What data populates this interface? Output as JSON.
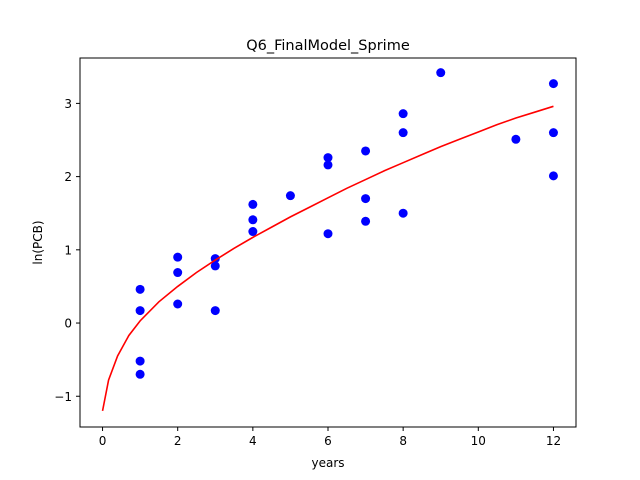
{
  "chart_data": {
    "type": "scatter",
    "title": "Q6_FinalModel_Sprime",
    "xlabel": "years",
    "ylabel": "ln(PCB)",
    "xlim": [
      -0.6,
      12.6
    ],
    "ylim": [
      -1.42,
      3.62
    ],
    "x_ticks": [
      0,
      2,
      4,
      6,
      8,
      10,
      12
    ],
    "x_tick_labels": [
      "0",
      "2",
      "4",
      "6",
      "8",
      "10",
      "12"
    ],
    "y_ticks": [
      -1,
      0,
      1,
      2,
      3
    ],
    "y_tick_labels": [
      "−1",
      "0",
      "1",
      "2",
      "3"
    ],
    "grid": false,
    "series": [
      {
        "type": "scatter",
        "color": "#0000ff",
        "points": [
          [
            1,
            0.46
          ],
          [
            1,
            0.17
          ],
          [
            1,
            -0.52
          ],
          [
            1,
            -0.7
          ],
          [
            2,
            0.9
          ],
          [
            2,
            0.69
          ],
          [
            2,
            0.26
          ],
          [
            3,
            0.88
          ],
          [
            3,
            0.78
          ],
          [
            3,
            0.17
          ],
          [
            4,
            1.62
          ],
          [
            4,
            1.41
          ],
          [
            4,
            1.25
          ],
          [
            5,
            1.74
          ],
          [
            6,
            2.26
          ],
          [
            6,
            2.16
          ],
          [
            6,
            1.22
          ],
          [
            7,
            2.35
          ],
          [
            7,
            1.7
          ],
          [
            7,
            1.39
          ],
          [
            8,
            2.86
          ],
          [
            8,
            2.6
          ],
          [
            8,
            1.5
          ],
          [
            9,
            3.42
          ],
          [
            11,
            2.51
          ],
          [
            12,
            3.27
          ],
          [
            12,
            2.6
          ],
          [
            12,
            2.01
          ]
        ]
      },
      {
        "type": "line",
        "color": "#ff0000",
        "points": [
          [
            0,
            -1.2
          ],
          [
            0.16,
            -0.78
          ],
          [
            0.4,
            -0.45
          ],
          [
            0.7,
            -0.17
          ],
          [
            1.0,
            0.03
          ],
          [
            1.5,
            0.29
          ],
          [
            2.0,
            0.5
          ],
          [
            2.5,
            0.69
          ],
          [
            3.0,
            0.86
          ],
          [
            3.5,
            1.02
          ],
          [
            4.0,
            1.17
          ],
          [
            4.5,
            1.31
          ],
          [
            5.0,
            1.45
          ],
          [
            5.5,
            1.58
          ],
          [
            6.0,
            1.71
          ],
          [
            6.5,
            1.84
          ],
          [
            7.0,
            1.96
          ],
          [
            7.5,
            2.08
          ],
          [
            8.0,
            2.19
          ],
          [
            8.5,
            2.3
          ],
          [
            9.0,
            2.41
          ],
          [
            9.5,
            2.51
          ],
          [
            10.0,
            2.61
          ],
          [
            10.5,
            2.71
          ],
          [
            11.0,
            2.8
          ],
          [
            11.5,
            2.88
          ],
          [
            12.0,
            2.96
          ]
        ]
      }
    ]
  }
}
